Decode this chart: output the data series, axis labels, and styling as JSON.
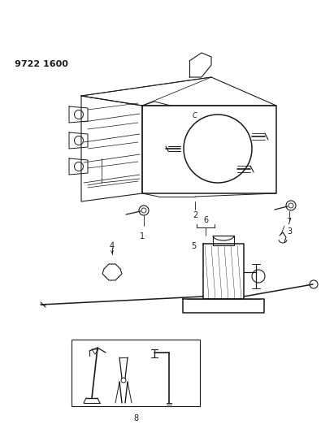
{
  "part_number": "9722 1600",
  "bg_color": "#ffffff",
  "line_color": "#1a1a1a",
  "fig_width": 4.11,
  "fig_height": 5.33,
  "dpi": 100
}
